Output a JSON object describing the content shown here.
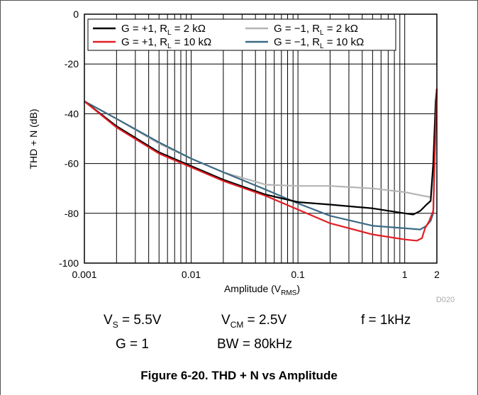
{
  "chart_data": {
    "type": "line",
    "title": "",
    "xlabel": "Amplitude (V",
    "xlabel_sub": "RMS",
    "xlabel_suffix": ")",
    "ylabel": "THD + N (dB)",
    "xscale": "log",
    "xlim": [
      0.001,
      2
    ],
    "ylim": [
      -100,
      0
    ],
    "grid": true,
    "legend_placement": "top",
    "xticks": [
      {
        "value": 0.001,
        "label": "0.001"
      },
      {
        "value": 0.01,
        "label": "0.01"
      },
      {
        "value": 0.1,
        "label": "0.1"
      },
      {
        "value": 1,
        "label": "1"
      },
      {
        "value": 2,
        "label": "2"
      }
    ],
    "yticks": [
      {
        "value": 0,
        "label": "0"
      },
      {
        "value": -20,
        "label": "-20"
      },
      {
        "value": -40,
        "label": "-40"
      },
      {
        "value": -60,
        "label": "-60"
      },
      {
        "value": -80,
        "label": "-80"
      },
      {
        "value": -100,
        "label": "-100"
      }
    ],
    "watermark": "D020",
    "series": [
      {
        "name": "G = +1, R_L = 2 kΩ",
        "color": "#000000",
        "points": [
          [
            0.001,
            -35
          ],
          [
            0.002,
            -45
          ],
          [
            0.005,
            -55.5
          ],
          [
            0.01,
            -61
          ],
          [
            0.02,
            -66.5
          ],
          [
            0.05,
            -72.5
          ],
          [
            0.1,
            -75.5
          ],
          [
            0.2,
            -76.5
          ],
          [
            0.5,
            -78
          ],
          [
            1,
            -80
          ],
          [
            1.2,
            -80.5
          ],
          [
            1.4,
            -79
          ],
          [
            1.6,
            -76.5
          ],
          [
            1.75,
            -75
          ],
          [
            1.85,
            -60
          ],
          [
            1.95,
            -35
          ],
          [
            2,
            -30
          ]
        ]
      },
      {
        "name": "G = −1, R_L = 2 kΩ",
        "color": "#b4b4b4",
        "points": [
          [
            0.001,
            -35
          ],
          [
            0.002,
            -42
          ],
          [
            0.005,
            -52
          ],
          [
            0.01,
            -58
          ],
          [
            0.02,
            -63.5
          ],
          [
            0.05,
            -68.5
          ],
          [
            0.1,
            -69
          ],
          [
            0.2,
            -69
          ],
          [
            0.5,
            -70
          ],
          [
            1,
            -71.5
          ],
          [
            1.5,
            -73
          ],
          [
            1.75,
            -73.5
          ],
          [
            1.85,
            -60
          ],
          [
            1.95,
            -35
          ],
          [
            2,
            -30
          ]
        ]
      },
      {
        "name": "G = +1, R_L = 10 kΩ",
        "color": "#e31e24",
        "points": [
          [
            0.001,
            -35
          ],
          [
            0.002,
            -45.5
          ],
          [
            0.005,
            -56
          ],
          [
            0.01,
            -61.5
          ],
          [
            0.02,
            -67
          ],
          [
            0.05,
            -73
          ],
          [
            0.1,
            -78.5
          ],
          [
            0.2,
            -84
          ],
          [
            0.5,
            -88.5
          ],
          [
            1,
            -90.5
          ],
          [
            1.3,
            -91
          ],
          [
            1.45,
            -90
          ],
          [
            1.55,
            -86
          ],
          [
            1.7,
            -83
          ],
          [
            1.85,
            -79
          ],
          [
            1.92,
            -55
          ],
          [
            1.97,
            -38
          ],
          [
            2,
            -30
          ]
        ]
      },
      {
        "name": "G = −1, R_L = 10 kΩ",
        "color": "#3d6a85",
        "points": [
          [
            0.001,
            -35
          ],
          [
            0.002,
            -42
          ],
          [
            0.005,
            -51.5
          ],
          [
            0.01,
            -58
          ],
          [
            0.02,
            -63.5
          ],
          [
            0.05,
            -70.5
          ],
          [
            0.1,
            -76
          ],
          [
            0.2,
            -81
          ],
          [
            0.5,
            -85
          ],
          [
            1,
            -86
          ],
          [
            1.4,
            -86.5
          ],
          [
            1.6,
            -85
          ],
          [
            1.75,
            -83
          ],
          [
            1.85,
            -80
          ],
          [
            1.9,
            -58
          ],
          [
            1.97,
            -38
          ],
          [
            2,
            -30
          ]
        ]
      }
    ]
  },
  "conditions": {
    "vs_prefix": "V",
    "vs_sub": "S",
    "vs_value": " = 5.5V",
    "vcm_prefix": "V",
    "vcm_sub": "CM",
    "vcm_value": " = 2.5V",
    "freq": "f = 1kHz",
    "gain": "G = 1",
    "bw": "BW = 80kHz"
  },
  "caption": "Figure 6-20. THD + N vs Amplitude"
}
